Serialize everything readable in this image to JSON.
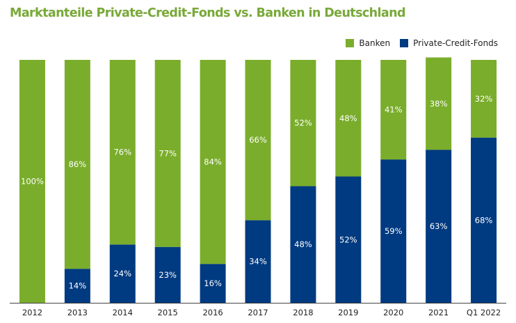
{
  "chart_data": {
    "type": "bar",
    "stacked": true,
    "title": "Marktanteile Private-Credit-Fonds vs. Banken in Deutschland",
    "categories": [
      "2012",
      "2013",
      "2014",
      "2015",
      "2016",
      "2017",
      "2018",
      "2019",
      "2020",
      "2021",
      "Q1 2022"
    ],
    "series": [
      {
        "name": "Private-Credit-Fonds",
        "values": [
          0,
          14,
          24,
          23,
          16,
          34,
          48,
          52,
          59,
          63,
          68
        ],
        "labels": [
          "",
          "14%",
          "24%",
          "23%",
          "16%",
          "34%",
          "48%",
          "52%",
          "59%",
          "63%",
          "68%"
        ]
      },
      {
        "name": "Banken",
        "values": [
          100,
          86,
          76,
          77,
          84,
          66,
          52,
          48,
          41,
          38,
          32
        ],
        "labels": [
          "100%",
          "86%",
          "76%",
          "77%",
          "84%",
          "66%",
          "52%",
          "48%",
          "41%",
          "38%",
          "32%"
        ]
      }
    ],
    "ylim": [
      0,
      100
    ],
    "grid": false,
    "legend_position": "top-right",
    "colors": {
      "Banken": "#7aad2b",
      "Private-Credit-Fonds": "#003a80",
      "title": "#78a938",
      "axis": "#444444"
    }
  }
}
